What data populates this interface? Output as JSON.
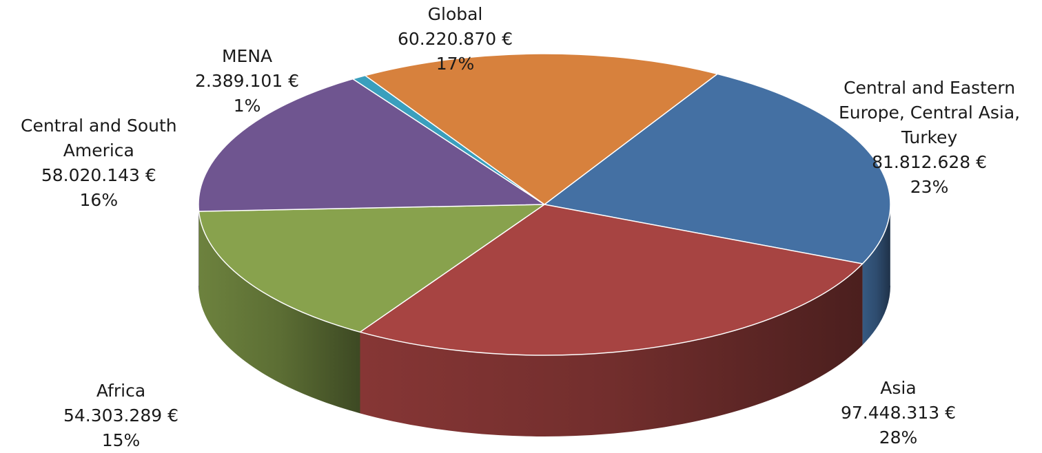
{
  "chart_data": {
    "type": "pie",
    "style": "3d",
    "title": "",
    "slices": [
      {
        "name": "Central and Eastern Europe, Central Asia, Turkey",
        "label_lines": [
          "Central and Eastern",
          "Europe, Central Asia,",
          "Turkey"
        ],
        "value": 81812628,
        "value_label": "81.812.628 €",
        "percent_label": "23%",
        "color": "#4470a3"
      },
      {
        "name": "Asia",
        "label_lines": [
          "Asia"
        ],
        "value": 97448313,
        "value_label": "97.448.313 €",
        "percent_label": "28%",
        "color": "#a74442"
      },
      {
        "name": "Africa",
        "label_lines": [
          "Africa"
        ],
        "value": 54303289,
        "value_label": "54.303.289 €",
        "percent_label": "15%",
        "color": "#88a24d"
      },
      {
        "name": "Central and South America",
        "label_lines": [
          "Central and South",
          "America"
        ],
        "value": 58020143,
        "value_label": "58.020.143 €",
        "percent_label": "16%",
        "color": "#6f5590"
      },
      {
        "name": "MENA",
        "label_lines": [
          "MENA"
        ],
        "value": 2389101,
        "value_label": "2.389.101 €",
        "percent_label": "1%",
        "color": "#3a9fbd"
      },
      {
        "name": "Global",
        "label_lines": [
          "Global"
        ],
        "value": 60220870,
        "value_label": "60.220.870 €",
        "percent_label": "17%",
        "color": "#d7813d"
      }
    ],
    "legend": "none"
  }
}
